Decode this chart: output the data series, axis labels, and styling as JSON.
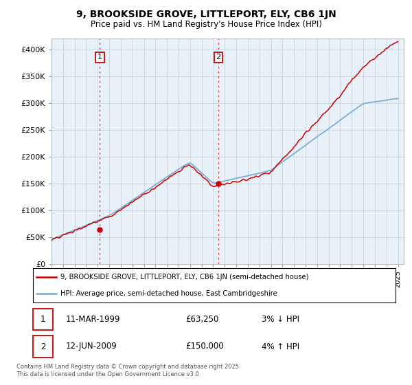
{
  "title": "9, BROOKSIDE GROVE, LITTLEPORT, ELY, CB6 1JN",
  "subtitle": "Price paid vs. HM Land Registry's House Price Index (HPI)",
  "legend_line1": "9, BROOKSIDE GROVE, LITTLEPORT, ELY, CB6 1JN (semi-detached house)",
  "legend_line2": "HPI: Average price, semi-detached house, East Cambridgeshire",
  "transaction1_date": "11-MAR-1999",
  "transaction1_price": "£63,250",
  "transaction1_hpi": "3% ↓ HPI",
  "transaction2_date": "12-JUN-2009",
  "transaction2_price": "£150,000",
  "transaction2_hpi": "4% ↑ HPI",
  "copyright": "Contains HM Land Registry data © Crown copyright and database right 2025.\nThis data is licensed under the Open Government Licence v3.0.",
  "hpi_color": "#7eadd4",
  "price_color": "#cc0000",
  "dot_color": "#cc0000",
  "bg_plot": "#e8f0f8",
  "background_color": "#ffffff",
  "grid_color": "#c8d4e0",
  "ylim": [
    0,
    420000
  ],
  "yticks": [
    0,
    50000,
    100000,
    150000,
    200000,
    250000,
    300000,
    350000,
    400000
  ],
  "ytick_labels": [
    "£0",
    "£50K",
    "£100K",
    "£150K",
    "£200K",
    "£250K",
    "£300K",
    "£350K",
    "£400K"
  ],
  "t1_year": 1999.18,
  "t1_price": 63250,
  "t2_year": 2009.45,
  "t2_price": 150000,
  "figsize": [
    6.0,
    5.6
  ],
  "dpi": 100
}
